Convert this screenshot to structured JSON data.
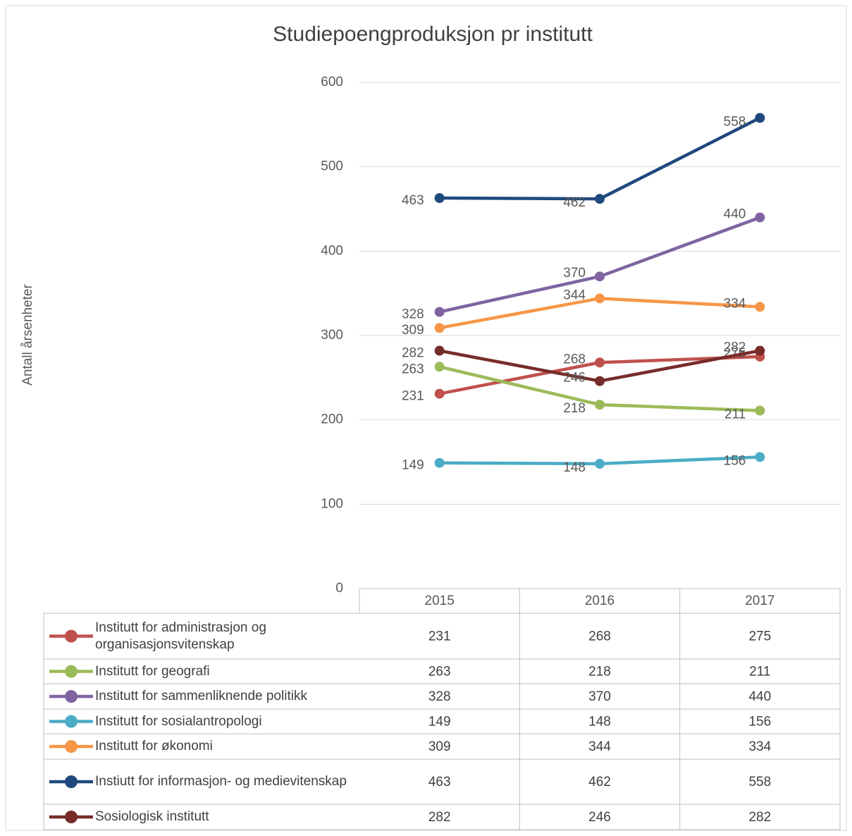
{
  "chart_data": {
    "type": "line",
    "title": "Studiepoengproduksjon pr institutt",
    "y_label": "Antall årsenheter",
    "categories": [
      "2015",
      "2016",
      "2017"
    ],
    "ylim": [
      0,
      600
    ],
    "yticks": [
      0,
      100,
      200,
      300,
      400,
      500,
      600
    ],
    "grid": true,
    "series": [
      {
        "name": "Institutt for administrasjon og organisasjonsvitenskap",
        "color": "#c0504d",
        "values": [
          231,
          268,
          275
        ]
      },
      {
        "name": "Institutt for geografi",
        "color": "#9bbb59",
        "values": [
          263,
          218,
          211
        ]
      },
      {
        "name": "Institutt for sammenliknende politikk",
        "color": "#8064a2",
        "values": [
          328,
          370,
          440
        ]
      },
      {
        "name": "Institutt for sosialantropologi",
        "color": "#4bacc6",
        "values": [
          149,
          148,
          156
        ]
      },
      {
        "name": "Institutt for økonomi",
        "color": "#f79646",
        "values": [
          309,
          344,
          334
        ]
      },
      {
        "name": "Instiutt for informasjon- og medievitenskap",
        "color": "#1f497d",
        "values": [
          463,
          462,
          558
        ]
      },
      {
        "name": "Sosiologisk institutt",
        "color": "#772c2a",
        "values": [
          282,
          246,
          282
        ]
      }
    ]
  }
}
